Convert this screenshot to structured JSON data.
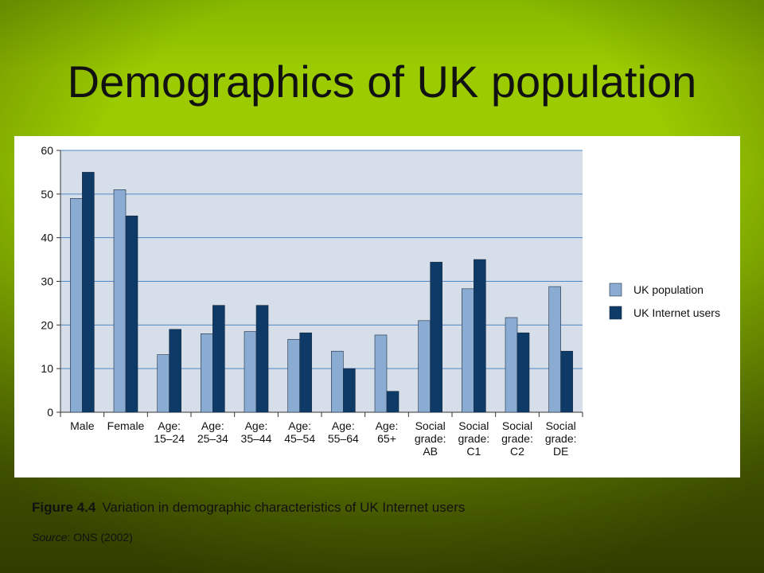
{
  "slide": {
    "title": "Demographics of UK population",
    "caption_figure": "Figure 4.4",
    "caption_text": "Variation in demographic characteristics of UK Internet users",
    "source_label": "Source",
    "source_text": ": ONS (2002)",
    "colors": {
      "background_top": "#9bcb00",
      "background_bottom": "#4a5e00",
      "plot_background": "#d6dfe9",
      "gridline": "#4f86c6"
    }
  },
  "chart_data": {
    "type": "bar",
    "categories": [
      [
        "Male"
      ],
      [
        "Female"
      ],
      [
        "Age:",
        "15–24"
      ],
      [
        "Age:",
        "25–34"
      ],
      [
        "Age:",
        "35–44"
      ],
      [
        "Age:",
        "45–54"
      ],
      [
        "Age:",
        "55–64"
      ],
      [
        "Age:",
        "65+"
      ],
      [
        "Social",
        "grade:",
        "AB"
      ],
      [
        "Social",
        "grade:",
        "C1"
      ],
      [
        "Social",
        "grade:",
        "C2"
      ],
      [
        "Social",
        "grade:",
        "DE"
      ]
    ],
    "series": [
      {
        "name": "UK population",
        "color": "#8bacd2",
        "values": [
          49,
          51,
          13.2,
          18,
          18.5,
          16.7,
          14,
          17.7,
          21,
          28.3,
          21.7,
          28.8
        ]
      },
      {
        "name": "UK Internet users",
        "color": "#0d3a67",
        "values": [
          55,
          45,
          19,
          24.5,
          24.5,
          18.2,
          10,
          4.8,
          34.4,
          35,
          18.2,
          14
        ]
      }
    ],
    "ylim": [
      0,
      60
    ],
    "yticks": [
      0,
      10,
      20,
      30,
      40,
      50,
      60
    ],
    "grid": true,
    "legend": "right"
  }
}
